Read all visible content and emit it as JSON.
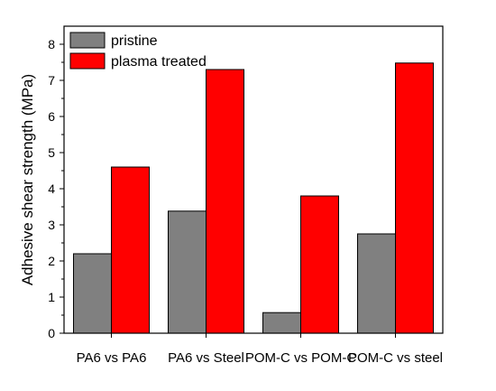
{
  "chart_data": {
    "type": "bar",
    "categories": [
      "PA6 vs PA6",
      "PA6 vs Steel",
      "POM-C vs POM-C",
      "POM-C vs steel"
    ],
    "series": [
      {
        "name": "pristine",
        "values": [
          2.2,
          3.38,
          0.57,
          2.75
        ],
        "color": "#808080"
      },
      {
        "name": "plasma treated",
        "values": [
          4.6,
          7.3,
          3.8,
          7.48
        ],
        "color": "#ff0000"
      }
    ],
    "ylabel": "Adhesive shear strength (MPa)",
    "xlabel": "",
    "ylim": [
      0,
      8.5
    ],
    "yticks": [
      0,
      1,
      2,
      3,
      4,
      5,
      6,
      7,
      8
    ],
    "legend_position": "top-left",
    "grid": false
  }
}
